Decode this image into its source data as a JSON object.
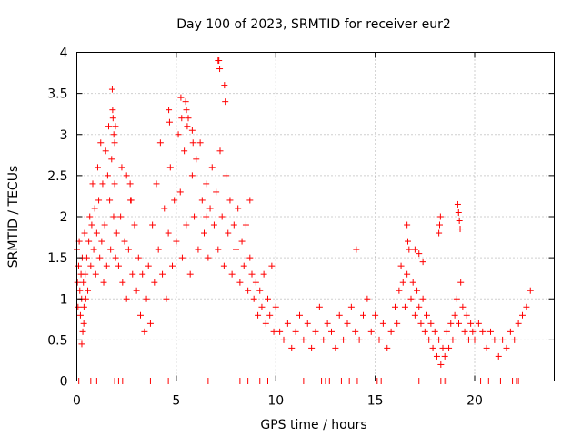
{
  "chart_data": {
    "type": "scatter",
    "title": "Day 100 of 2023, SRMTID for receiver eur2",
    "xlabel": "GPS time / hours",
    "ylabel": "SRMTID / TECUs",
    "xlim": [
      0,
      24
    ],
    "ylim": [
      0,
      4
    ],
    "xticks": [
      0,
      5,
      10,
      15,
      20
    ],
    "xtick_labels": [
      "0",
      "5",
      "10",
      "15",
      "20"
    ],
    "yticks": [
      0,
      0.5,
      1,
      1.5,
      2,
      2.5,
      3,
      3.5,
      4
    ],
    "ytick_labels": [
      "0",
      "0.5",
      "1",
      "1.5",
      "2",
      "2.5",
      "3",
      "3.5",
      "4"
    ],
    "grid": true,
    "marker": "+",
    "color": "#ff0000",
    "series": [
      {
        "name": "SRMTID",
        "x": [
          0.0,
          0.03,
          0.06,
          0.09,
          0.12,
          0.15,
          0.18,
          0.21,
          0.24,
          0.27,
          0.3,
          0.33,
          0.36,
          0.39,
          0.42,
          0.45,
          0.5,
          0.55,
          0.6,
          0.65,
          0.7,
          0.75,
          0.8,
          0.85,
          0.9,
          0.95,
          1.0,
          1.05,
          1.1,
          1.15,
          1.2,
          1.25,
          1.3,
          1.35,
          1.4,
          1.45,
          1.5,
          1.55,
          1.6,
          1.65,
          1.7,
          1.75,
          1.8,
          1.85,
          1.9,
          1.95,
          2.0,
          2.1,
          2.2,
          2.3,
          2.4,
          2.5,
          2.6,
          2.7,
          2.8,
          2.9,
          3.0,
          3.1,
          3.2,
          3.3,
          3.4,
          3.5,
          3.6,
          3.7,
          3.8,
          3.9,
          4.0,
          4.1,
          4.2,
          4.3,
          4.4,
          4.5,
          4.6,
          4.7,
          4.8,
          4.9,
          5.0,
          5.1,
          5.2,
          5.3,
          5.4,
          5.5,
          5.6,
          5.7,
          5.8,
          5.9,
          6.0,
          6.1,
          6.2,
          6.3,
          6.4,
          6.5,
          6.6,
          6.7,
          6.8,
          6.9,
          7.0,
          7.1,
          7.2,
          7.3,
          7.4,
          7.5,
          7.6,
          7.7,
          7.8,
          7.9,
          8.0,
          8.1,
          8.2,
          8.3,
          8.4,
          8.5,
          8.6,
          8.7,
          8.8,
          8.9,
          9.0,
          9.1,
          9.2,
          9.3,
          9.4,
          9.5,
          9.6,
          9.7,
          9.8,
          9.9,
          10.0,
          10.2,
          10.4,
          10.6,
          10.8,
          11.0,
          11.2,
          11.4,
          11.6,
          11.8,
          12.0,
          12.2,
          12.4,
          12.6,
          12.8,
          13.0,
          13.2,
          13.4,
          13.6,
          13.8,
          14.0,
          14.2,
          14.4,
          14.6,
          14.8,
          15.0,
          15.2,
          15.4,
          15.6,
          15.8,
          16.0,
          16.1,
          16.2,
          16.3,
          16.4,
          16.5,
          16.6,
          16.7,
          16.8,
          16.9,
          17.0,
          17.1,
          17.2,
          17.3,
          17.4,
          17.5,
          17.6,
          17.7,
          17.8,
          17.9,
          18.0,
          18.1,
          18.2,
          18.3,
          18.4,
          18.5,
          18.6,
          18.7,
          18.8,
          18.9,
          19.0,
          19.1,
          19.2,
          19.3,
          19.4,
          19.5,
          19.6,
          19.7,
          19.8,
          19.9,
          20.0,
          20.2,
          20.4,
          20.6,
          20.8,
          21.0,
          21.2,
          21.4,
          21.6,
          21.8,
          22.0,
          22.2,
          22.4,
          22.6,
          22.8,
          1.78,
          1.82,
          1.86,
          1.9,
          1.94,
          2.26,
          2.5,
          2.73,
          4.62,
          4.66,
          5.23,
          5.27,
          5.47,
          5.51,
          5.55,
          5.8,
          5.84,
          7.1,
          7.14,
          7.18,
          7.42,
          7.46,
          18.2,
          18.24,
          18.28,
          19.15,
          19.19,
          19.23,
          19.27,
          16.6,
          16.64,
          17.0,
          17.2,
          17.4,
          0.25,
          0.35,
          2.68,
          6.5,
          8.7,
          14.05,
          0.1,
          0.7,
          1.0,
          1.9,
          2.1,
          2.3,
          3.7,
          4.6,
          6.6,
          8.2,
          8.6,
          9.2,
          9.6,
          11.4,
          12.3,
          12.5,
          12.7,
          13.3,
          13.7,
          14.1,
          15.1,
          15.3,
          17.2,
          18.3,
          18.5,
          18.6,
          20.3,
          20.7,
          21.3,
          21.9,
          22.1,
          22.2
        ],
        "y": [
          1.6,
          1.2,
          0.9,
          1.4,
          1.7,
          1.1,
          0.8,
          1.3,
          1.0,
          1.5,
          0.6,
          1.2,
          0.9,
          1.8,
          1.3,
          1.0,
          1.5,
          1.1,
          1.7,
          2.0,
          1.4,
          1.9,
          2.4,
          1.6,
          2.1,
          1.3,
          1.8,
          2.6,
          2.2,
          1.5,
          2.9,
          1.7,
          2.4,
          1.2,
          1.9,
          2.8,
          1.4,
          2.5,
          3.1,
          2.2,
          1.6,
          2.7,
          3.3,
          2.0,
          2.4,
          1.5,
          1.8,
          1.4,
          2.0,
          1.2,
          1.7,
          1.0,
          1.6,
          2.2,
          1.3,
          1.9,
          1.1,
          1.5,
          0.8,
          1.3,
          0.6,
          1.0,
          1.4,
          0.7,
          1.9,
          1.2,
          2.4,
          1.6,
          2.9,
          1.3,
          2.1,
          1.0,
          1.8,
          2.6,
          1.4,
          2.2,
          1.7,
          3.0,
          2.3,
          1.5,
          2.8,
          1.9,
          3.2,
          1.3,
          2.5,
          2.0,
          2.7,
          1.6,
          2.9,
          2.2,
          1.8,
          2.4,
          1.5,
          2.1,
          2.6,
          1.9,
          2.3,
          1.6,
          2.8,
          2.0,
          1.4,
          2.5,
          1.8,
          2.2,
          1.3,
          1.9,
          1.6,
          2.1,
          1.2,
          1.7,
          1.4,
          1.9,
          1.1,
          1.5,
          1.3,
          1.0,
          1.2,
          0.8,
          1.1,
          0.9,
          1.3,
          0.7,
          1.0,
          0.8,
          1.4,
          0.6,
          0.9,
          0.6,
          0.5,
          0.7,
          0.4,
          0.6,
          0.8,
          0.5,
          0.7,
          0.4,
          0.6,
          0.9,
          0.5,
          0.7,
          0.6,
          0.4,
          0.8,
          0.5,
          0.7,
          0.9,
          0.6,
          0.5,
          0.8,
          1.0,
          0.6,
          0.8,
          0.5,
          0.7,
          0.4,
          0.6,
          0.9,
          0.7,
          1.1,
          1.4,
          1.2,
          0.9,
          1.3,
          1.6,
          1.0,
          1.2,
          0.8,
          1.1,
          0.9,
          0.7,
          1.0,
          0.6,
          0.8,
          0.5,
          0.7,
          0.4,
          0.6,
          0.3,
          0.5,
          0.2,
          0.4,
          0.3,
          0.6,
          0.4,
          0.7,
          0.5,
          0.8,
          1.0,
          0.7,
          1.2,
          0.9,
          0.6,
          0.8,
          0.5,
          0.7,
          0.6,
          0.5,
          0.7,
          0.6,
          0.4,
          0.6,
          0.5,
          0.3,
          0.5,
          0.4,
          0.6,
          0.5,
          0.7,
          0.8,
          0.9,
          1.1,
          3.55,
          3.2,
          3.0,
          2.9,
          3.1,
          2.6,
          2.5,
          2.2,
          3.3,
          3.15,
          3.45,
          3.2,
          3.4,
          3.3,
          3.1,
          3.05,
          2.9,
          3.9,
          3.9,
          3.8,
          3.6,
          3.4,
          1.8,
          1.9,
          2.0,
          2.15,
          2.05,
          1.95,
          1.85,
          1.9,
          1.7,
          1.6,
          1.55,
          1.45,
          0.45,
          0.7,
          2.4,
          2.0,
          2.2,
          1.6,
          0,
          0,
          0,
          0,
          0,
          0,
          0,
          0,
          0,
          0,
          0,
          0,
          0,
          0,
          0,
          0,
          0,
          0,
          0,
          0,
          0,
          0,
          0,
          0,
          0,
          0,
          0,
          0,
          0,
          0,
          0,
          0
        ]
      }
    ]
  }
}
